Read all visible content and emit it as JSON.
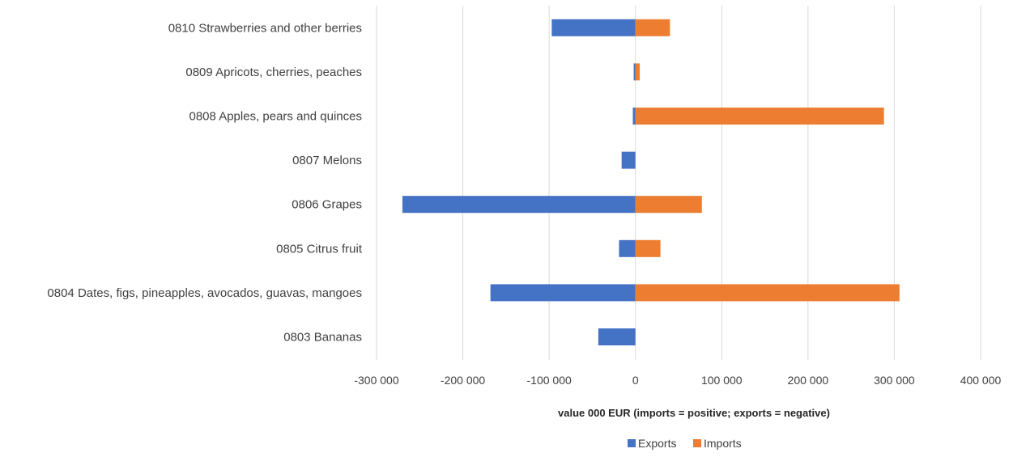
{
  "chart_data": {
    "type": "bar",
    "orientation": "horizontal",
    "categories": [
      "0810 Strawberries and other berries",
      "0809 Apricots, cherries, peaches",
      "0808 Apples, pears and quinces",
      "0807 Melons",
      "0806 Grapes",
      "0805 Citrus fruit",
      "0804 Dates, figs, pineapples, avocados, guavas, mangoes",
      "0803 Bananas"
    ],
    "series": [
      {
        "name": "Exports",
        "color": "#4472C4",
        "values": [
          -97000,
          -2000,
          -3000,
          -16000,
          -270000,
          -19000,
          -168000,
          -43000
        ]
      },
      {
        "name": "Imports",
        "color": "#ED7D31",
        "values": [
          40000,
          5000,
          288000,
          0,
          77000,
          29000,
          306000,
          0
        ]
      }
    ],
    "xlim": [
      -300000,
      400000
    ],
    "xticks": [
      -300000,
      -200000,
      -100000,
      0,
      100000,
      200000,
      300000,
      400000
    ],
    "xtick_labels": [
      "-300 000",
      "-200 000",
      "-100 000",
      "0",
      "100 000",
      "200 000",
      "300 000",
      "400 000"
    ],
    "xlabel": "value 000 EUR (imports = positive; exports = negative)",
    "ylabel": "",
    "title": "",
    "grid": "vertical",
    "legend_position": "bottom"
  }
}
